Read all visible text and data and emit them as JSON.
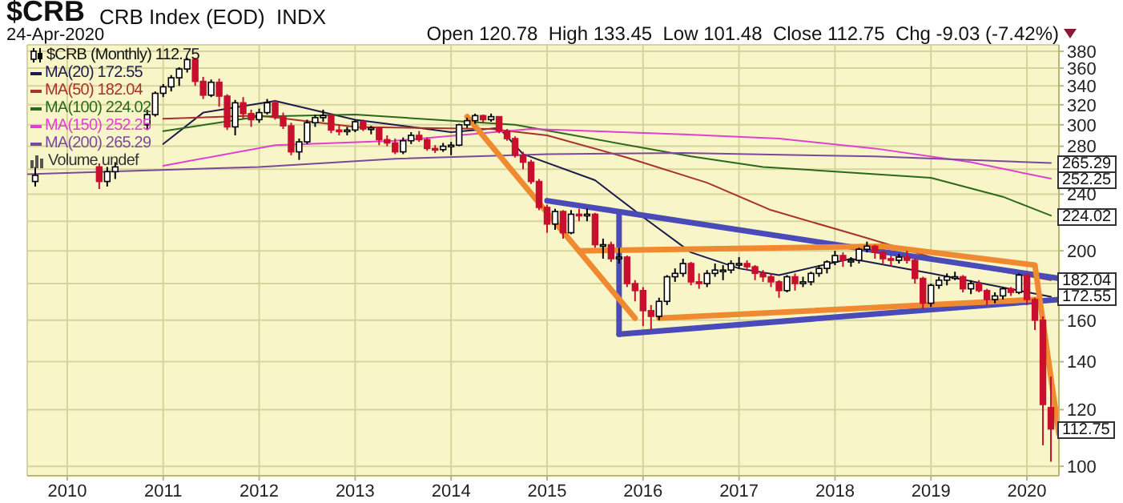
{
  "chart_data": {
    "type": "candlestick",
    "title": "$CRB",
    "subtitle": "CRB Index (EOD)  INDX",
    "annotations": [
      "24-Apr-2020",
      "Open 120.78  High 133.45  Low 101.48  Close 112.75  Chg -9.03 (-7.42%)",
      "Volume undef",
      {
        "text": "265.29",
        "x": "2020-04",
        "y": 265.29
      },
      {
        "text": "252.25",
        "x": "2020-04",
        "y": 252.25
      },
      {
        "text": "224.02",
        "x": "2020-04",
        "y": 224.02
      },
      {
        "text": "182.04",
        "x": "2020-04",
        "y": 182.04
      },
      {
        "text": "172.55",
        "x": "2020-04",
        "y": 172.55
      },
      {
        "text": "112.75",
        "x": "2020-04",
        "y": 112.75
      }
    ],
    "x": [
      "2009-09",
      "2010-05",
      "2010-06",
      "2010-07",
      "2010-11",
      "2010-12",
      "2011-01",
      "2011-02",
      "2011-03",
      "2011-04",
      "2011-05",
      "2011-06",
      "2011-07",
      "2011-08",
      "2011-09",
      "2011-10",
      "2011-11",
      "2011-12",
      "2012-01",
      "2012-02",
      "2012-03",
      "2012-04",
      "2012-05",
      "2012-06",
      "2012-07",
      "2012-08",
      "2012-09",
      "2012-10",
      "2012-11",
      "2012-12",
      "2013-01",
      "2013-02",
      "2013-03",
      "2013-04",
      "2013-05",
      "2013-06",
      "2013-07",
      "2013-08",
      "2013-09",
      "2013-10",
      "2013-11",
      "2013-12",
      "2014-01",
      "2014-02",
      "2014-03",
      "2014-04",
      "2014-05",
      "2014-06",
      "2014-07",
      "2014-08",
      "2014-09",
      "2014-10",
      "2014-11",
      "2014-12",
      "2015-01",
      "2015-02",
      "2015-03",
      "2015-04",
      "2015-05",
      "2015-06",
      "2015-07",
      "2015-08",
      "2015-09",
      "2015-10",
      "2015-11",
      "2015-12",
      "2016-01",
      "2016-02",
      "2016-03",
      "2016-04",
      "2016-05",
      "2016-06",
      "2016-07",
      "2016-08",
      "2016-09",
      "2016-10",
      "2016-11",
      "2016-12",
      "2017-01",
      "2017-02",
      "2017-03",
      "2017-04",
      "2017-05",
      "2017-06",
      "2017-07",
      "2017-08",
      "2017-09",
      "2017-10",
      "2017-11",
      "2017-12",
      "2018-01",
      "2018-02",
      "2018-03",
      "2018-04",
      "2018-05",
      "2018-06",
      "2018-07",
      "2018-08",
      "2018-09",
      "2018-10",
      "2018-11",
      "2018-12",
      "2019-01",
      "2019-02",
      "2019-03",
      "2019-04",
      "2019-05",
      "2019-06",
      "2019-07",
      "2019-08",
      "2019-09",
      "2019-10",
      "2019-11",
      "2019-12",
      "2020-01",
      "2020-02",
      "2020-03",
      "2020-04"
    ],
    "series": [
      {
        "name": "$CRB (Monthly) 112.75",
        "color": "#c8102e",
        "colors": [
          "#ffffff",
          "#c8102e",
          "#ffffff",
          "#ffffff",
          "#ffffff",
          "#ffffff",
          "#ffffff",
          "#ffffff",
          "#ffffff",
          "#ffffff",
          "#c8102e",
          "#c8102e",
          "#ffffff",
          "#c8102e",
          "#c8102e",
          "#ffffff",
          "#c8102e",
          "#c8102e",
          "#ffffff",
          "#ffffff",
          "#c8102e",
          "#c8102e",
          "#c8102e",
          "#ffffff",
          "#ffffff",
          "#ffffff",
          "#ffffff",
          "#c8102e",
          "#c8102e",
          "#ffffff",
          "#ffffff",
          "#c8102e",
          "#ffffff",
          "#c8102e",
          "#c8102e",
          "#c8102e",
          "#ffffff",
          "#ffffff",
          "#c8102e",
          "#c8102e",
          "#c8102e",
          "#ffffff",
          "#ffffff",
          "#ffffff",
          "#ffffff",
          "#ffffff",
          "#c8102e",
          "#ffffff",
          "#c8102e",
          "#c8102e",
          "#c8102e",
          "#c8102e",
          "#c8102e",
          "#c8102e",
          "#c8102e",
          "#ffffff",
          "#c8102e",
          "#ffffff",
          "#c8102e",
          "#ffffff",
          "#c8102e",
          "#ffffff",
          "#c8102e",
          "#ffffff",
          "#c8102e",
          "#c8102e",
          "#c8102e",
          "#c8102e",
          "#ffffff",
          "#ffffff",
          "#ffffff",
          "#ffffff",
          "#c8102e",
          "#c8102e",
          "#ffffff",
          "#ffffff",
          "#ffffff",
          "#ffffff",
          "#ffffff",
          "#c8102e",
          "#c8102e",
          "#c8102e",
          "#c8102e",
          "#c8102e",
          "#ffffff",
          "#c8102e",
          "#ffffff",
          "#ffffff",
          "#ffffff",
          "#ffffff",
          "#ffffff",
          "#c8102e",
          "#ffffff",
          "#ffffff",
          "#ffffff",
          "#c8102e",
          "#c8102e",
          "#c8102e",
          "#ffffff",
          "#c8102e",
          "#c8102e",
          "#c8102e",
          "#ffffff",
          "#ffffff",
          "#ffffff",
          "#ffffff",
          "#c8102e",
          "#ffffff",
          "#c8102e",
          "#c8102e",
          "#ffffff",
          "#ffffff",
          "#c8102e",
          "#ffffff",
          "#c8102e",
          "#c8102e",
          "#c8102e",
          "#c8102e"
        ],
        "ohlc": [
          [
            250,
            262,
            246,
            255
          ],
          [
            262,
            265,
            244,
            250
          ],
          [
            250,
            262,
            246,
            258
          ],
          [
            258,
            266,
            252,
            262
          ],
          [
            300,
            315,
            295,
            310
          ],
          [
            310,
            334,
            308,
            332
          ],
          [
            332,
            342,
            328,
            339
          ],
          [
            339,
            352,
            334,
            349
          ],
          [
            349,
            361,
            340,
            359
          ],
          [
            359,
            372,
            355,
            370
          ],
          [
            370,
            372,
            340,
            345
          ],
          [
            345,
            350,
            326,
            330
          ],
          [
            330,
            347,
            328,
            344
          ],
          [
            344,
            348,
            318,
            329
          ],
          [
            329,
            331,
            295,
            298
          ],
          [
            298,
            325,
            290,
            322
          ],
          [
            322,
            328,
            306,
            311
          ],
          [
            311,
            315,
            298,
            305
          ],
          [
            305,
            316,
            302,
            312
          ],
          [
            312,
            326,
            310,
            322
          ],
          [
            322,
            325,
            305,
            308
          ],
          [
            308,
            312,
            296,
            299
          ],
          [
            299,
            302,
            272,
            275
          ],
          [
            275,
            287,
            268,
            284
          ],
          [
            284,
            305,
            282,
            302
          ],
          [
            302,
            310,
            298,
            307
          ],
          [
            307,
            315,
            303,
            309
          ],
          [
            309,
            311,
            292,
            295
          ],
          [
            295,
            300,
            290,
            294
          ],
          [
            294,
            298,
            290,
            295
          ],
          [
            295,
            305,
            293,
            303
          ],
          [
            303,
            305,
            294,
            296
          ],
          [
            296,
            299,
            291,
            297
          ],
          [
            297,
            298,
            281,
            286
          ],
          [
            286,
            290,
            280,
            283
          ],
          [
            283,
            287,
            273,
            275
          ],
          [
            275,
            288,
            273,
            285
          ],
          [
            285,
            293,
            282,
            290
          ],
          [
            290,
            294,
            284,
            286
          ],
          [
            286,
            288,
            276,
            278
          ],
          [
            278,
            281,
            274,
            277
          ],
          [
            277,
            283,
            275,
            280
          ],
          [
            280,
            284,
            272,
            281
          ],
          [
            281,
            301,
            280,
            300
          ],
          [
            300,
            307,
            297,
            304
          ],
          [
            304,
            311,
            301,
            309
          ],
          [
            309,
            310,
            302,
            305
          ],
          [
            305,
            311,
            303,
            308
          ],
          [
            308,
            308,
            292,
            294
          ],
          [
            294,
            296,
            285,
            287
          ],
          [
            287,
            289,
            270,
            272
          ],
          [
            272,
            275,
            260,
            266
          ],
          [
            266,
            268,
            248,
            250
          ],
          [
            250,
            252,
            228,
            230
          ],
          [
            230,
            232,
            212,
            218
          ],
          [
            218,
            229,
            214,
            227
          ],
          [
            227,
            228,
            208,
            212
          ],
          [
            212,
            228,
            211,
            225
          ],
          [
            225,
            229,
            220,
            224
          ],
          [
            224,
            229,
            220,
            225
          ],
          [
            225,
            226,
            202,
            204
          ],
          [
            204,
            208,
            195,
            204
          ],
          [
            204,
            206,
            193,
            195
          ],
          [
            195,
            202,
            192,
            196
          ],
          [
            196,
            197,
            178,
            180
          ],
          [
            180,
            182,
            170,
            176
          ],
          [
            176,
            178,
            157,
            165
          ],
          [
            165,
            168,
            155,
            162
          ],
          [
            162,
            172,
            160,
            170
          ],
          [
            170,
            185,
            168,
            184
          ],
          [
            184,
            189,
            181,
            186
          ],
          [
            186,
            195,
            184,
            192
          ],
          [
            192,
            193,
            179,
            181
          ],
          [
            181,
            186,
            177,
            180
          ],
          [
            180,
            188,
            178,
            186
          ],
          [
            186,
            192,
            184,
            188
          ],
          [
            188,
            191,
            182,
            188
          ],
          [
            188,
            194,
            186,
            192
          ],
          [
            192,
            196,
            189,
            192
          ],
          [
            192,
            194,
            188,
            190
          ],
          [
            190,
            191,
            182,
            186
          ],
          [
            186,
            188,
            181,
            184
          ],
          [
            184,
            186,
            178,
            181
          ],
          [
            181,
            182,
            172,
            176
          ],
          [
            176,
            185,
            175,
            184
          ],
          [
            184,
            186,
            176,
            180
          ],
          [
            180,
            184,
            178,
            181
          ],
          [
            181,
            187,
            179,
            186
          ],
          [
            186,
            191,
            184,
            189
          ],
          [
            189,
            194,
            186,
            193
          ],
          [
            193,
            200,
            191,
            197
          ],
          [
            197,
            199,
            190,
            194
          ],
          [
            194,
            196,
            190,
            194
          ],
          [
            194,
            202,
            192,
            201
          ],
          [
            201,
            206,
            199,
            203
          ],
          [
            203,
            204,
            195,
            199
          ],
          [
            199,
            200,
            192,
            195
          ],
          [
            195,
            197,
            190,
            194
          ],
          [
            194,
            198,
            192,
            196
          ],
          [
            196,
            200,
            192,
            194
          ],
          [
            194,
            195,
            180,
            183
          ],
          [
            183,
            184,
            166,
            169
          ],
          [
            169,
            180,
            167,
            179
          ],
          [
            179,
            184,
            177,
            182
          ],
          [
            182,
            186,
            179,
            184
          ],
          [
            184,
            187,
            182,
            184
          ],
          [
            184,
            185,
            175,
            177
          ],
          [
            177,
            182,
            174,
            180
          ],
          [
            180,
            182,
            175,
            176
          ],
          [
            176,
            177,
            168,
            171
          ],
          [
            171,
            175,
            169,
            173
          ],
          [
            173,
            178,
            171,
            177
          ],
          [
            177,
            178,
            173,
            175
          ],
          [
            175,
            186,
            174,
            185
          ],
          [
            185,
            186,
            168,
            171
          ],
          [
            171,
            172,
            155,
            160
          ],
          [
            160,
            162,
            107,
            122
          ],
          [
            120.78,
            133.45,
            101.48,
            112.75
          ]
        ]
      },
      {
        "type": "line",
        "name": "MA(20) 172.55",
        "color": "#1c1c4c",
        "x": [
          "2011-01",
          "2011-06",
          "2012-03",
          "2013-01",
          "2014-01",
          "2014-07",
          "2014-10",
          "2015-07",
          "2016-01",
          "2016-07",
          "2017-01",
          "2017-06",
          "2018-03",
          "2019-01",
          "2019-12",
          "2020-04"
        ],
        "values": [
          282,
          312,
          324,
          305,
          293,
          297,
          273,
          251,
          223,
          199,
          189,
          185,
          195,
          186,
          176,
          172.55
        ]
      },
      {
        "type": "line",
        "name": "MA(50) 182.04",
        "color": "#a8322a",
        "x": [
          "2011-01",
          "2012-01",
          "2013-01",
          "2014-06",
          "2015-01",
          "2015-11",
          "2016-09",
          "2017-05",
          "2018-04",
          "2019-03",
          "2020-04"
        ],
        "values": [
          306,
          309,
          298,
          296,
          290,
          270,
          249,
          228,
          210,
          193,
          182.04
        ]
      },
      {
        "type": "line",
        "name": "MA(100) 224.02",
        "color": "#2a6a1a",
        "x": [
          "2011-01",
          "2012-01",
          "2013-01",
          "2014-09",
          "2016-07",
          "2017-04",
          "2019-01",
          "2019-10",
          "2020-04"
        ],
        "values": [
          294,
          308,
          310,
          300,
          271,
          262,
          253,
          238,
          224.02
        ]
      },
      {
        "type": "line",
        "name": "MA(150) 252.25",
        "color": "#e040d0",
        "x": [
          "2011-01",
          "2012-03",
          "2013-06",
          "2014-11",
          "2016-06",
          "2017-06",
          "2018-06",
          "2019-06",
          "2020-04"
        ],
        "values": [
          263,
          281,
          285,
          296,
          291,
          287,
          278,
          266,
          252.25
        ]
      },
      {
        "type": "line",
        "name": "MA(200) 265.29",
        "color": "#7a4a9a",
        "x": [
          "2009-08",
          "2012-01",
          "2013-06",
          "2015-01",
          "2016-06",
          "2018-06",
          "2020-04"
        ],
        "values": [
          256,
          262,
          269,
          273,
          274,
          271,
          265.29
        ]
      },
      {
        "type": "line",
        "color": "#4a4ab8",
        "x": [
          "2015-01",
          "2020-05"
        ],
        "values": [
          235,
          183
        ]
      },
      {
        "type": "line",
        "color": "#4a4ab8",
        "x": [
          "2015-10",
          "2015-10"
        ],
        "values": [
          226,
          153
        ]
      },
      {
        "type": "line",
        "color": "#4a4ab8",
        "x": [
          "2015-10",
          "2020-05"
        ],
        "values": [
          153,
          171
        ]
      },
      {
        "type": "line",
        "color": "#f08a30",
        "x": [
          "2014-03",
          "2015-12"
        ],
        "values": [
          308,
          161
        ]
      },
      {
        "type": "line",
        "color": "#f08a30",
        "x": [
          "2015-05",
          "2018-07",
          "2020-02",
          "2020-05"
        ],
        "values": [
          200,
          203,
          191,
          111
        ]
      },
      {
        "type": "line",
        "color": "#f08a30",
        "x": [
          "2016-03",
          "2020-02"
        ],
        "values": [
          161,
          171
        ]
      }
    ],
    "log": "y",
    "grid": true,
    "legend": "top left",
    "xlim": [
      "2009-08",
      "2020-05"
    ],
    "xticks": [
      "2010",
      "2011",
      "2012",
      "2013",
      "2014",
      "2015",
      "2016",
      "2017",
      "2018",
      "2019",
      "2020"
    ],
    "ylim": [
      97,
      388
    ],
    "yticks": [
      100,
      120,
      140,
      160,
      {
        "value": 180,
        "label": null
      },
      200,
      {
        "value": 220,
        "label": null
      },
      240,
      {
        "value": 260,
        "label": null
      },
      280,
      300,
      320,
      340,
      360,
      380
    ]
  }
}
